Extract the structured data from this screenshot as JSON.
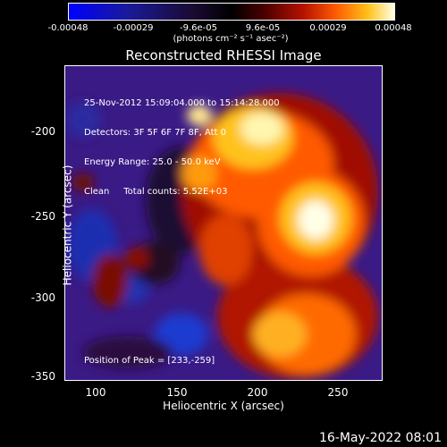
{
  "colorbar": {
    "ticks": [
      "-0.00048",
      "-0.00029",
      "-9.6e-05",
      "9.6e-05",
      "0.00029",
      "0.00048"
    ],
    "units": "(photons cm⁻² s⁻¹ asec⁻²)"
  },
  "title": "Reconstructed RHESSI Image",
  "info": {
    "line1": "25-Nov-2012 15:09:04.000 to 15:14:28.000",
    "line2": "Detectors: 3F 5F 6F 7F 8F, Att 0",
    "line3": "Energy Range: 25.0 - 50.0 keV",
    "line4": "Clean     Total counts: 5.52E+03"
  },
  "peak": "Position of Peak = [233,-259]",
  "axes": {
    "xlabel": "Heliocentric X (arcsec)",
    "ylabel": "Heliocentric Y (arcsec)",
    "xticks": [
      "100",
      "150",
      "200",
      "250"
    ],
    "yticks": [
      "-200",
      "-250",
      "-300",
      "-350"
    ]
  },
  "footer_date": "16-May-2022 08:01",
  "colors": {
    "background": "#000000",
    "text": "#ffffff"
  }
}
